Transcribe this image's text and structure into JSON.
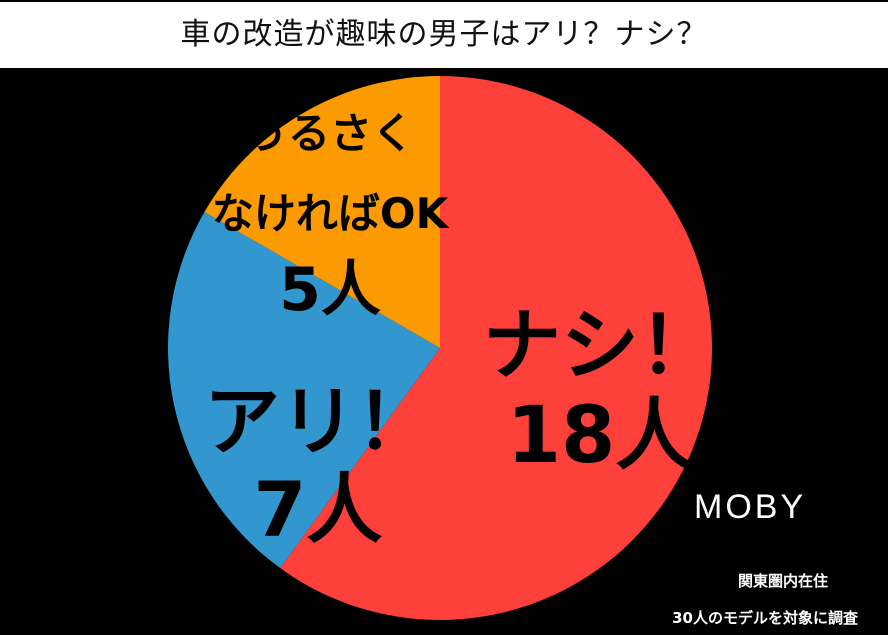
{
  "chart_data": {
    "type": "pie",
    "title": "車の改造が趣味の男子はアリ？ナシ？",
    "slices": [
      {
        "label_lines": [
          "ナシ！",
          "18人"
        ],
        "value": 18,
        "color": "#fd4039"
      },
      {
        "label_lines": [
          "アリ！",
          "7人"
        ],
        "value": 7,
        "color": "#3397cf"
      },
      {
        "label_lines": [
          "うるさく",
          "なければOK",
          "5人"
        ],
        "value": 5,
        "color": "#fc9a02"
      }
    ],
    "start": "12 o'clock",
    "direction": "clockwise"
  },
  "brand": "MOBY",
  "notes": [
    "関東圏内在住",
    "30人のモデルを対象に調査"
  ]
}
